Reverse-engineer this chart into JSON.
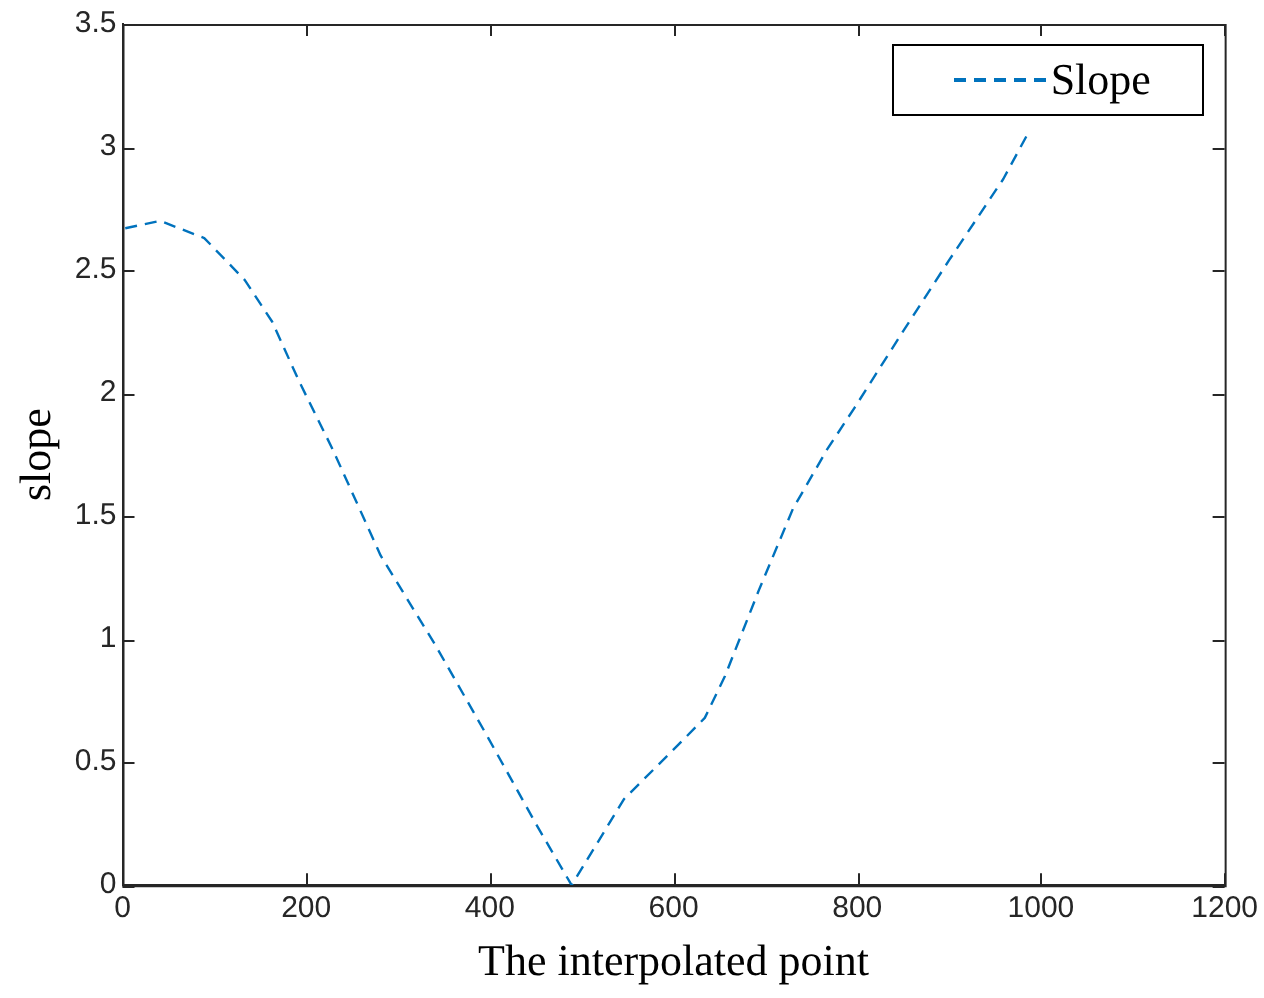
{
  "chart_data": {
    "type": "line",
    "xlabel": "The interpolated point",
    "ylabel": "slope",
    "xlim": [
      0,
      1200
    ],
    "xticks": [
      0,
      200,
      400,
      600,
      800,
      1000,
      1200
    ],
    "ylim": [
      0,
      3.5
    ],
    "yticks": [
      0,
      0.5,
      1,
      1.5,
      2,
      2.5,
      3,
      3.5
    ],
    "grid": false,
    "legend": "top right",
    "line_style": "dashed",
    "marker": "none",
    "series": [
      {
        "name": "Slope",
        "color": "#0072bd",
        "x": [
          3,
          41,
          89,
          133,
          163,
          192,
          229,
          281,
          340,
          398,
          450,
          489,
          546,
          605,
          634,
          656,
          693,
          730,
          767,
          797,
          848,
          900,
          959,
          988
        ],
        "values": [
          2.67,
          2.7,
          2.63,
          2.46,
          2.29,
          2.05,
          1.77,
          1.34,
          0.98,
          0.6,
          0.25,
          0,
          0.35,
          0.57,
          0.68,
          0.85,
          1.2,
          1.53,
          1.77,
          1.94,
          2.24,
          2.54,
          2.87,
          3.07
        ]
      }
    ]
  }
}
